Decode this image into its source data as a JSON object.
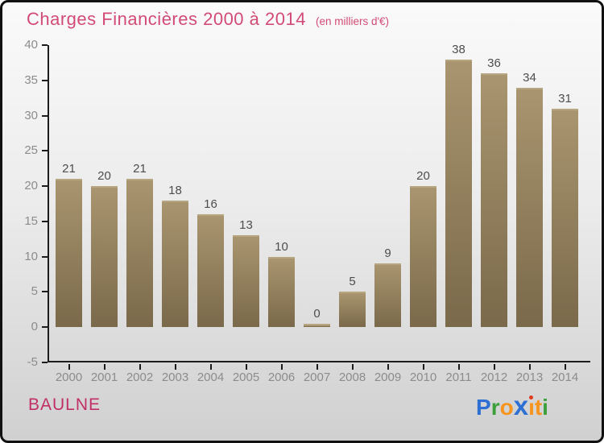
{
  "header": {
    "title": "Charges Financières 2000 à 2014",
    "subtitle": "(en milliers d'€)"
  },
  "chart_data": {
    "type": "bar",
    "title": "Charges Financières 2000 à 2014",
    "subtitle": "(en milliers d'€)",
    "categories": [
      "2000",
      "2001",
      "2002",
      "2003",
      "2004",
      "2005",
      "2006",
      "2007",
      "2008",
      "2009",
      "2010",
      "2011",
      "2012",
      "2013",
      "2014"
    ],
    "values": [
      21,
      20,
      21,
      18,
      16,
      13,
      10,
      0,
      5,
      9,
      20,
      38,
      36,
      34,
      31
    ],
    "xlabel": "",
    "ylabel": "",
    "ylim": [
      -5,
      40
    ],
    "yticks": [
      -5,
      0,
      5,
      10,
      15,
      20,
      25,
      30,
      35,
      40
    ],
    "grid": false,
    "legend": null,
    "bar_color_description": "tan/khaki vertical gradient bars with lighter top cap"
  },
  "footer": {
    "commune": "BAULNE",
    "logo": {
      "name": "Proxiti",
      "letters": [
        {
          "ch": "P",
          "color": "#2d6fd2"
        },
        {
          "ch": "r",
          "color": "#3ba03b"
        },
        {
          "ch": "o",
          "color": "#f7941d"
        },
        {
          "ch": "x",
          "color": "#2d6fd2",
          "big": true
        },
        {
          "ch": "i",
          "color": "#f7941d",
          "dot_color": "#e03a1e"
        },
        {
          "ch": "t",
          "color": "#f7941d"
        },
        {
          "ch": "i",
          "color": "#3ba03b"
        }
      ]
    }
  },
  "colors": {
    "title": "#d24b76",
    "commune": "#c03066",
    "bar_top": "#a9956f",
    "bar_bottom": "#7a694a",
    "bar_cap": "#b7a682",
    "axis": "#1c1c1c",
    "tick_label": "#8c8c8c",
    "value_label": "#4d4d4d",
    "bg_top": "#fafafa",
    "bg_mid": "#ececec",
    "bg_bottom": "#d0d0d0",
    "frame_border": "#111111"
  }
}
